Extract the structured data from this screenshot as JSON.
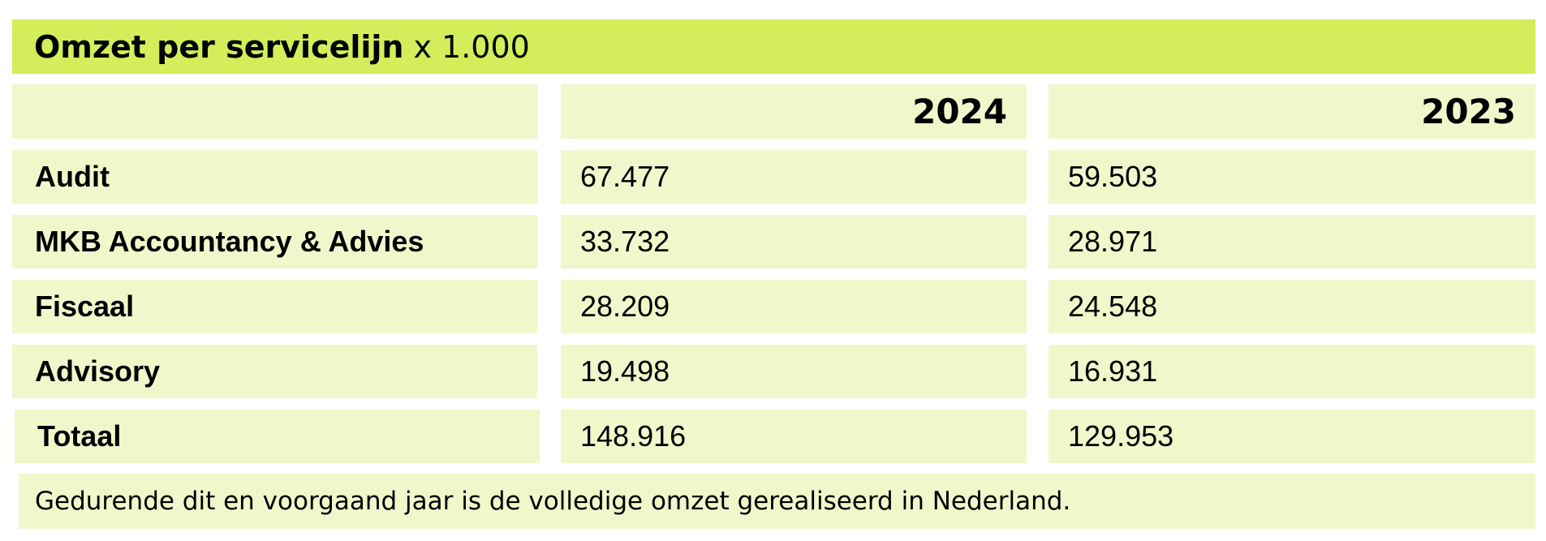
{
  "title": {
    "main": "Omzet per servicelijn",
    "unit": "x 1.000"
  },
  "header": {
    "years": [
      "2024",
      "2023"
    ]
  },
  "table": {
    "rows": [
      [
        "Audit",
        "67.477",
        "59.503"
      ],
      [
        "MKB Accountancy & Advies",
        "33.732",
        "28.971"
      ],
      [
        "Fiscaal",
        "28.209",
        "24.548"
      ],
      [
        "Advisory",
        "19.498",
        "16.931"
      ],
      [
        "Totaal",
        "148.916",
        "129.953"
      ]
    ]
  },
  "footnote": "Gedurende dit en voorgaand jaar is de volledige omzet gerealiseerd in Nederland."
}
